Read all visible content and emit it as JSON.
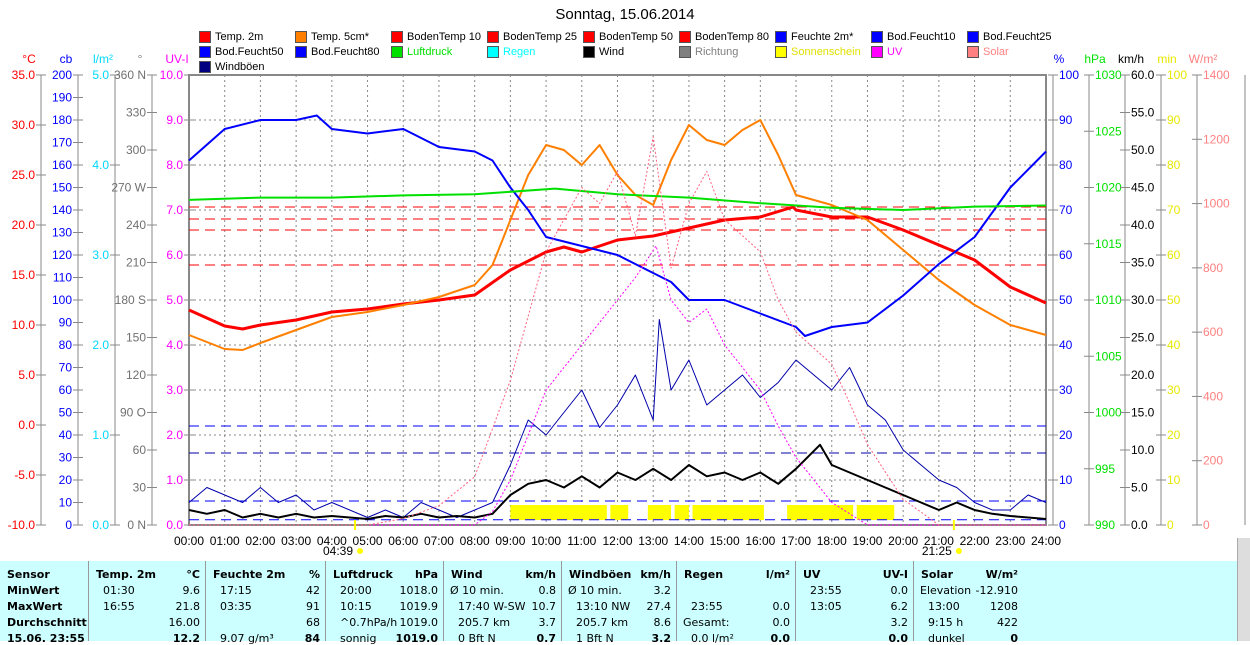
{
  "title": "Sonntag, 15.06.2014",
  "legend": [
    {
      "label": "Temp. 2m",
      "color": "#ff0000"
    },
    {
      "label": "Temp. 5cm*",
      "color": "#ff8000"
    },
    {
      "label": "BodenTemp 10",
      "color": "#ff0000"
    },
    {
      "label": "BodenTemp 25",
      "color": "#ff0000"
    },
    {
      "label": "BodenTemp 50",
      "color": "#ff0000"
    },
    {
      "label": "BodenTemp 80",
      "color": "#ff0000"
    },
    {
      "label": "Feuchte 2m*",
      "color": "#0000ff"
    },
    {
      "label": "Bod.Feucht10",
      "color": "#0000ff"
    },
    {
      "label": "Bod.Feucht25",
      "color": "#0000ff"
    },
    {
      "label": "Bod.Feucht50",
      "color": "#0000ff"
    },
    {
      "label": "Bod.Feucht80",
      "color": "#0000ff"
    },
    {
      "label": "Luftdruck",
      "color": "#00e000"
    },
    {
      "label": "Regen",
      "color": "#00ffff"
    },
    {
      "label": "Wind",
      "color": "#000000"
    },
    {
      "label": "Richtung",
      "color": "#808080"
    },
    {
      "label": "Sonnenschein",
      "color": "#ffff00"
    },
    {
      "label": "UV",
      "color": "#ff00ff"
    },
    {
      "label": "Solar",
      "color": "#ff8080"
    },
    {
      "label": "Windböen",
      "color": "#000080"
    }
  ],
  "chart_data": {
    "type": "line",
    "title": "Sonntag, 15.06.2014",
    "x_ticks": [
      "00:00",
      "01:00",
      "02:00",
      "03:00",
      "04:00",
      "05:00",
      "06:00",
      "07:00",
      "08:00",
      "09:00",
      "10:00",
      "11:00",
      "12:00",
      "13:00",
      "14:00",
      "15:00",
      "16:00",
      "17:00",
      "18:00",
      "19:00",
      "20:00",
      "21:00",
      "22:00",
      "23:00",
      "24:00"
    ],
    "sunrise": {
      "label": "04:39",
      "hour": 4.65
    },
    "sunset": {
      "label": "21:25",
      "hour": 21.42
    },
    "axes_left": [
      {
        "unit": "°C",
        "color": "#ff0000",
        "ticks": [
          "35.0",
          "30.0",
          "25.0",
          "20.0",
          "15.0",
          "10.0",
          "5.0",
          "0.0",
          "-5.0",
          "-10.0"
        ],
        "range": [
          -10,
          35
        ]
      },
      {
        "unit": "cb",
        "color": "#0000ff",
        "ticks": [
          "200",
          "190",
          "180",
          "170",
          "160",
          "150",
          "140",
          "130",
          "120",
          "110",
          "100",
          "90",
          "80",
          "70",
          "60",
          "50",
          "40",
          "30",
          "20",
          "10",
          "0"
        ],
        "range": [
          0,
          200
        ]
      },
      {
        "unit": "l/m²",
        "color": "#00e0ff",
        "ticks": [
          "5.0",
          "4.0",
          "3.0",
          "2.0",
          "1.0",
          "0.0"
        ],
        "range": [
          0,
          5
        ]
      },
      {
        "unit": "°",
        "color": "#808080",
        "ticks": [
          "360 N",
          "330",
          "300",
          "270 W",
          "240",
          "210",
          "180 S",
          "150",
          "120",
          "90  O",
          "60",
          "30",
          "0  N"
        ],
        "range": [
          0,
          360
        ]
      },
      {
        "unit": "UV-I",
        "color": "#ff00ff",
        "ticks": [
          "10.0",
          "9.0",
          "8.0",
          "7.0",
          "6.0",
          "5.0",
          "4.0",
          "3.0",
          "2.0",
          "1.0",
          "0.0"
        ],
        "range": [
          0,
          10
        ]
      }
    ],
    "axes_right": [
      {
        "unit": "%",
        "color": "#0000ff",
        "ticks": [
          "100",
          "90",
          "80",
          "70",
          "60",
          "50",
          "40",
          "30",
          "20",
          "10",
          "0"
        ],
        "range": [
          0,
          100
        ]
      },
      {
        "unit": "hPa",
        "color": "#00e000",
        "ticks": [
          "1030",
          "1025",
          "1020",
          "1015",
          "1010",
          "1005",
          "1000",
          "995",
          "990"
        ],
        "range": [
          990,
          1030
        ]
      },
      {
        "unit": "km/h",
        "color": "#000000",
        "ticks": [
          "60.0",
          "55.0",
          "50.0",
          "45.0",
          "40.0",
          "35.0",
          "30.0",
          "25.0",
          "20.0",
          "15.0",
          "10.0",
          "5.0",
          "0.0"
        ],
        "range": [
          0,
          60
        ]
      },
      {
        "unit": "min",
        "color": "#ffff00",
        "ticks": [
          "100",
          "90",
          "80",
          "70",
          "60",
          "50",
          "40",
          "30",
          "20",
          "10",
          "0"
        ],
        "range": [
          0,
          100
        ]
      },
      {
        "unit": "W/m²",
        "color": "#ff8080",
        "ticks": [
          "1400",
          "1200",
          "1000",
          "800",
          "600",
          "400",
          "200",
          "0"
        ],
        "range": [
          0,
          1400
        ]
      }
    ],
    "series": [
      {
        "name": "Temp. 2m",
        "axis": "°C",
        "color": "#ff0000",
        "width": 3,
        "x": [
          0,
          1,
          1.5,
          2,
          3,
          4,
          5,
          6,
          7,
          8,
          9,
          10,
          10.5,
          11,
          12,
          13,
          14,
          15,
          16,
          16.92,
          17,
          18,
          19,
          20,
          21,
          22,
          23,
          24
        ],
        "y": [
          11.5,
          9.9,
          9.6,
          10.0,
          10.5,
          11.3,
          11.6,
          12.1,
          12.5,
          13.0,
          15.5,
          17.3,
          17.8,
          17.3,
          18.5,
          18.9,
          19.7,
          20.5,
          20.8,
          21.8,
          21.5,
          20.8,
          20.8,
          19.5,
          18.0,
          16.5,
          13.8,
          12.2
        ]
      },
      {
        "name": "Temp. 5cm*",
        "axis": "°C",
        "color": "#ff8000",
        "width": 2,
        "x": [
          0,
          1,
          1.5,
          2,
          3,
          4,
          5,
          6,
          7,
          8,
          8.5,
          9,
          9.5,
          10,
          10.5,
          11,
          11.5,
          12,
          12.5,
          13,
          13.5,
          14,
          14.5,
          15,
          15.5,
          16,
          16.5,
          17,
          17.5,
          18,
          19,
          20,
          21,
          22,
          23,
          24
        ],
        "y": [
          9.0,
          7.6,
          7.5,
          8.2,
          9.5,
          10.8,
          11.3,
          12.0,
          12.8,
          14.0,
          16,
          20.5,
          25,
          28,
          27.5,
          26,
          28,
          25,
          23,
          22,
          26.5,
          30,
          28.5,
          28,
          29.5,
          30.5,
          27,
          23,
          22.5,
          22,
          20.5,
          17.5,
          14.5,
          12.0,
          10.0,
          9.0
        ]
      },
      {
        "name": "Feuchte 2m*",
        "axis": "%",
        "color": "#0000ff",
        "width": 2,
        "x": [
          0,
          1,
          2,
          3,
          3.58,
          4,
          5,
          6,
          7,
          8,
          8.5,
          9,
          9.5,
          10,
          11,
          12,
          13,
          13.5,
          14,
          15,
          16,
          17,
          17.25,
          18,
          19,
          20,
          21,
          22,
          23,
          24
        ],
        "y": [
          81,
          88,
          90,
          90,
          91,
          88,
          87,
          88,
          84,
          83,
          81,
          75,
          70,
          64,
          62,
          60,
          56,
          54,
          50,
          50,
          47,
          44,
          42,
          44,
          45,
          51,
          58,
          64,
          75,
          83
        ]
      },
      {
        "name": "Luftdruck",
        "axis": "hPa",
        "color": "#00e000",
        "width": 2,
        "x": [
          0,
          2,
          4,
          6,
          8,
          10.25,
          12,
          14,
          16,
          18,
          20,
          22,
          24
        ],
        "y": [
          1018.9,
          1019.1,
          1019.1,
          1019.3,
          1019.4,
          1019.9,
          1019.4,
          1019.1,
          1018.6,
          1018.2,
          1018.0,
          1018.3,
          1018.4
        ]
      },
      {
        "name": "Windböen",
        "axis": "km/h",
        "color": "#0000aa",
        "width": 1,
        "x": [
          0,
          0.5,
          1,
          1.5,
          2,
          2.5,
          3,
          3.5,
          4,
          4.5,
          5,
          5.5,
          6,
          6.5,
          7,
          7.5,
          8,
          8.5,
          9,
          9.5,
          10,
          10.5,
          11,
          11.5,
          12,
          12.5,
          13,
          13.17,
          13.5,
          14,
          14.5,
          15,
          15.5,
          16,
          16.5,
          17,
          17.5,
          18,
          18.5,
          19,
          19.5,
          20,
          20.5,
          21,
          21.5,
          22,
          22.5,
          23,
          23.5,
          24
        ],
        "y": [
          3,
          5,
          4,
          3,
          5,
          3,
          4,
          2,
          3,
          2,
          1,
          2,
          1,
          3,
          2,
          1,
          2,
          3,
          8,
          14,
          12,
          15,
          18,
          13,
          16,
          20,
          14,
          27.4,
          18,
          22,
          16,
          18,
          20,
          17,
          19,
          22,
          20,
          18,
          21,
          16,
          14,
          10,
          8,
          6,
          5,
          3,
          2,
          2,
          4,
          3
        ]
      },
      {
        "name": "Wind",
        "axis": "km/h",
        "color": "#000000",
        "width": 2,
        "x": [
          0,
          0.5,
          1,
          1.5,
          2,
          2.5,
          3,
          3.5,
          4,
          4.5,
          5,
          5.5,
          6,
          6.5,
          7,
          7.5,
          8,
          8.5,
          9,
          9.5,
          10,
          10.5,
          11,
          11.5,
          12,
          12.5,
          13,
          13.5,
          14,
          14.5,
          15,
          15.5,
          16,
          16.5,
          17,
          17.67,
          18,
          18.5,
          19,
          19.5,
          20,
          20.5,
          21,
          21.5,
          22,
          22.5,
          23,
          23.5,
          24
        ],
        "y": [
          2,
          1.5,
          2,
          1,
          1.5,
          1,
          1.5,
          1,
          1.2,
          1,
          0.8,
          1.2,
          1,
          1.5,
          1,
          1.2,
          1,
          1.5,
          4,
          5.5,
          6,
          5,
          6.5,
          5,
          7,
          6,
          7.5,
          6,
          8,
          6.5,
          7,
          6,
          7,
          5.5,
          7.5,
          10.7,
          8,
          7,
          6,
          5,
          4,
          3,
          2,
          3,
          2,
          1.5,
          1.2,
          1,
          0.8
        ]
      },
      {
        "name": "UV",
        "axis": "UV-I",
        "color": "#ff00ff",
        "width": 1,
        "dash": "2,2",
        "x": [
          0,
          8,
          8.5,
          9,
          9.5,
          10,
          10.5,
          11,
          11.5,
          12,
          12.5,
          13.08,
          13.5,
          14,
          14.5,
          15,
          15.5,
          16,
          16.5,
          17,
          17.5,
          18,
          19,
          24
        ],
        "y": [
          0,
          0,
          0.3,
          1,
          2,
          3,
          3.5,
          4,
          4.5,
          5,
          5.5,
          6.2,
          5,
          4.5,
          4.8,
          4,
          3.5,
          3,
          2.2,
          1.5,
          1,
          0.5,
          0,
          0
        ]
      },
      {
        "name": "Solar",
        "axis": "W/m²",
        "color": "#ff6080",
        "width": 1,
        "dash": "2,2",
        "x": [
          0,
          5,
          6,
          7,
          8,
          8.5,
          9,
          9.5,
          10,
          10.5,
          11,
          11.5,
          12,
          12.5,
          13,
          13.5,
          14,
          14.5,
          15,
          15.5,
          16,
          16.5,
          17,
          17.5,
          18,
          18.5,
          19,
          20,
          21,
          24
        ],
        "y": [
          0,
          0,
          20,
          60,
          150,
          300,
          450,
          650,
          850,
          950,
          1050,
          1000,
          1100,
          900,
          1208,
          800,
          1000,
          1100,
          950,
          900,
          850,
          700,
          600,
          550,
          500,
          380,
          250,
          80,
          0,
          0
        ]
      }
    ],
    "sunshine_intervals": [
      [
        9.0,
        11.7
      ],
      [
        11.8,
        12.3
      ],
      [
        12.85,
        13.5
      ],
      [
        13.6,
        14.0
      ],
      [
        14.1,
        16.1
      ],
      [
        16.75,
        18.6
      ],
      [
        18.7,
        19.75
      ]
    ],
    "reference_lines": [
      {
        "axis": "°C",
        "value": 21.8,
        "color": "#ff0000"
      },
      {
        "axis": "°C",
        "value": 16.0,
        "color": "#ff0000"
      },
      {
        "axis": "°C",
        "value": 19.5,
        "color": "#ff0000"
      },
      {
        "axis": "%",
        "value": 68,
        "color": "#ff0000"
      },
      {
        "axis": "%",
        "value": 22,
        "color": "#0000ff"
      },
      {
        "axis": "%",
        "value": 16,
        "color": "#0000aa"
      },
      {
        "axis": "km/h",
        "value": 3.2,
        "color": "#0000ff"
      },
      {
        "axis": "km/h",
        "value": 0.7,
        "color": "#0000ff"
      }
    ]
  },
  "table": {
    "columns": [
      {
        "head": "Sensor",
        "unit": "",
        "rows": [
          [
            "MinWert",
            ""
          ],
          [
            "MaxWert",
            ""
          ],
          [
            "Durchschnitt",
            ""
          ],
          [
            "15.06. 23:55",
            ""
          ]
        ],
        "bold": true
      },
      {
        "head": "Temp. 2m",
        "unit": "°C",
        "rows": [
          [
            "01:30",
            "9.6"
          ],
          [
            "16:55",
            "21.8"
          ],
          [
            "",
            "16.00"
          ],
          [
            "",
            "12.2"
          ]
        ]
      },
      {
        "head": "Feuchte 2m",
        "unit": "%",
        "rows": [
          [
            "17:15",
            "42"
          ],
          [
            "03:35",
            "91"
          ],
          [
            "",
            "68"
          ],
          [
            "9.07 g/m³",
            "84"
          ]
        ]
      },
      {
        "head": "Luftdruck",
        "unit": "hPa",
        "rows": [
          [
            "20:00",
            "1018.0"
          ],
          [
            "10:15",
            "1019.9"
          ],
          [
            "^0.7hPa/h",
            "1019.0"
          ],
          [
            "sonnig",
            "1019.0"
          ]
        ]
      },
      {
        "head": "Wind",
        "unit": "km/h",
        "rows": [
          [
            "Ø 10 min.",
            "0.8"
          ],
          [
            "17:40  W-SW",
            "10.7"
          ],
          [
            "205.7 km",
            "3.7"
          ],
          [
            "0 Bft N",
            "0.7"
          ]
        ]
      },
      {
        "head": "Windböen",
        "unit": "km/h",
        "rows": [
          [
            "Ø 10 min.",
            "3.2"
          ],
          [
            "13:10     NW",
            "27.4"
          ],
          [
            "205.7 km",
            "8.6"
          ],
          [
            "1 Bft N",
            "3.2"
          ]
        ]
      },
      {
        "head": "Regen",
        "unit": "l/m²",
        "rows": [
          [
            "",
            ""
          ],
          [
            "23:55",
            "0.0"
          ],
          [
            "Gesamt:",
            "0.0"
          ],
          [
            "0.0 l/m²",
            "0.0"
          ]
        ]
      },
      {
        "head": "UV",
        "unit": "UV-I",
        "rows": [
          [
            "23:55",
            "0.0"
          ],
          [
            "13:05",
            "6.2"
          ],
          [
            "",
            "3.2"
          ],
          [
            "",
            "0.0"
          ]
        ]
      },
      {
        "head": "Solar",
        "unit": "W/m²",
        "rows": [
          [
            "Elevation",
            "-12.910"
          ],
          [
            "13:00",
            "1208"
          ],
          [
            "9:15 h",
            "422"
          ],
          [
            "dunkel",
            "0"
          ]
        ]
      }
    ]
  }
}
